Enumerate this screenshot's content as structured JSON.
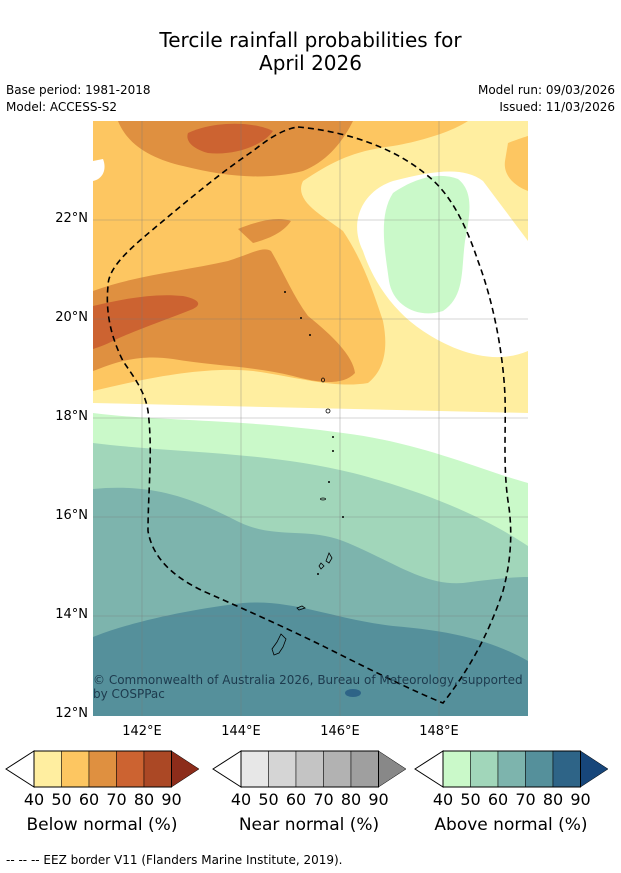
{
  "title_line1": "Tercile rainfall probabilities for",
  "title_line2": "April 2026",
  "meta": {
    "base_period": "Base period: 1981-2018",
    "model": "Model: ACCESS-S2",
    "model_run": "Model run: 09/03/2026",
    "issued": "Issued: 11/03/2026"
  },
  "lat_labels": [
    "22°N",
    "20°N",
    "18°N",
    "16°N",
    "14°N",
    "12°N"
  ],
  "lon_labels": [
    "142°E",
    "144°E",
    "146°E",
    "148°E"
  ],
  "copyright": "© Commonwealth of Australia 2026, Bureau of Meteorology, supported by COSPPac",
  "colorbars": [
    {
      "title": "Below normal (%)",
      "ticks": [
        "40",
        "50",
        "60",
        "70",
        "80",
        "90"
      ],
      "colors": [
        "#ffeea0",
        "#fdc661",
        "#df9040",
        "#cc6331",
        "#ab4825",
        "#8c2c1a"
      ]
    },
    {
      "title": "Near normal (%)",
      "ticks": [
        "40",
        "50",
        "60",
        "70",
        "80",
        "90"
      ],
      "colors": [
        "#e7e7e7",
        "#d5d5d5",
        "#c4c4c4",
        "#b2b2b2",
        "#9f9f9f",
        "#888888"
      ]
    },
    {
      "title": "Above normal (%)",
      "ticks": [
        "40",
        "50",
        "60",
        "70",
        "80",
        "90"
      ],
      "colors": [
        "#caf9c9",
        "#a1d6ba",
        "#7db4ad",
        "#55909b",
        "#2e6487",
        "#17467a"
      ]
    }
  ],
  "footnote": "--  --  -- EEZ border V11 (Flanders Marine Institute, 2019)."
}
